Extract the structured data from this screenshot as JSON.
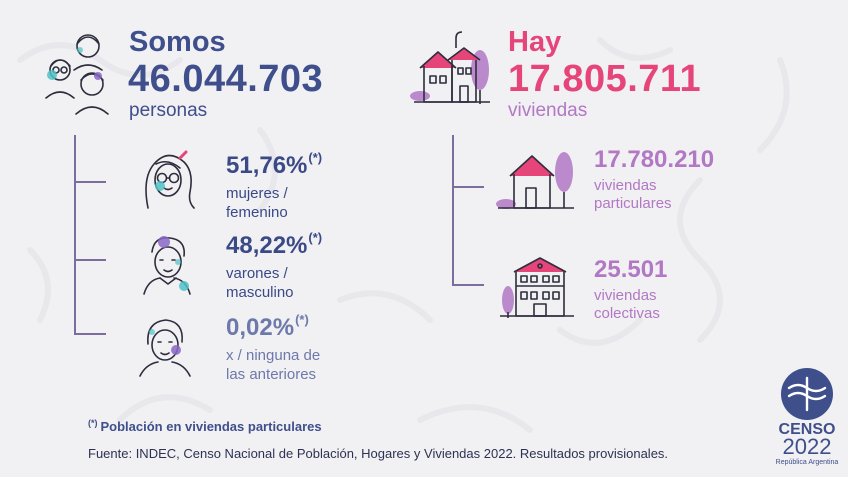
{
  "population": {
    "lead": "Somos",
    "number": "46.044.703",
    "unit": "personas",
    "icon": "people-group-icon",
    "breakdown": [
      {
        "pct": "51,76%",
        "mark": "(*)",
        "label_l1": "mujeres /",
        "label_l2": "femenino",
        "icon": "woman-face-icon"
      },
      {
        "pct": "48,22%",
        "mark": "(*)",
        "label_l1": "varones /",
        "label_l2": "masculino",
        "icon": "man-face-icon"
      },
      {
        "pct": "0,02%",
        "mark": "(*)",
        "label_l1": "x / ninguna de",
        "label_l2": "las anteriores",
        "icon": "person-face-icon"
      }
    ]
  },
  "housing": {
    "lead": "Hay",
    "number": "17.805.711",
    "unit": "viviendas",
    "icon": "houses-icon",
    "breakdown": [
      {
        "num": "17.780.210",
        "label_l1": "viviendas",
        "label_l2": "particulares",
        "icon": "house-icon"
      },
      {
        "num": "25.501",
        "label_l1": "viviendas",
        "label_l2": "colectivas",
        "icon": "building-icon"
      }
    ]
  },
  "footnote": {
    "mark": "(*)",
    "text": "Población en viviendas particulares"
  },
  "source": "Fuente: INDEC, Censo Nacional de Población, Hogares y Viviendas 2022. Resultados provisionales.",
  "logo": {
    "word": "CENSO",
    "year": "2022",
    "country": "República Argentina",
    "icon": "censo-logo-icon"
  },
  "colors": {
    "navy": "#3e4f8c",
    "pink": "#e6457a",
    "purple": "#b278c4",
    "line": "#7d6d9e",
    "background": "#f1f0f3"
  }
}
